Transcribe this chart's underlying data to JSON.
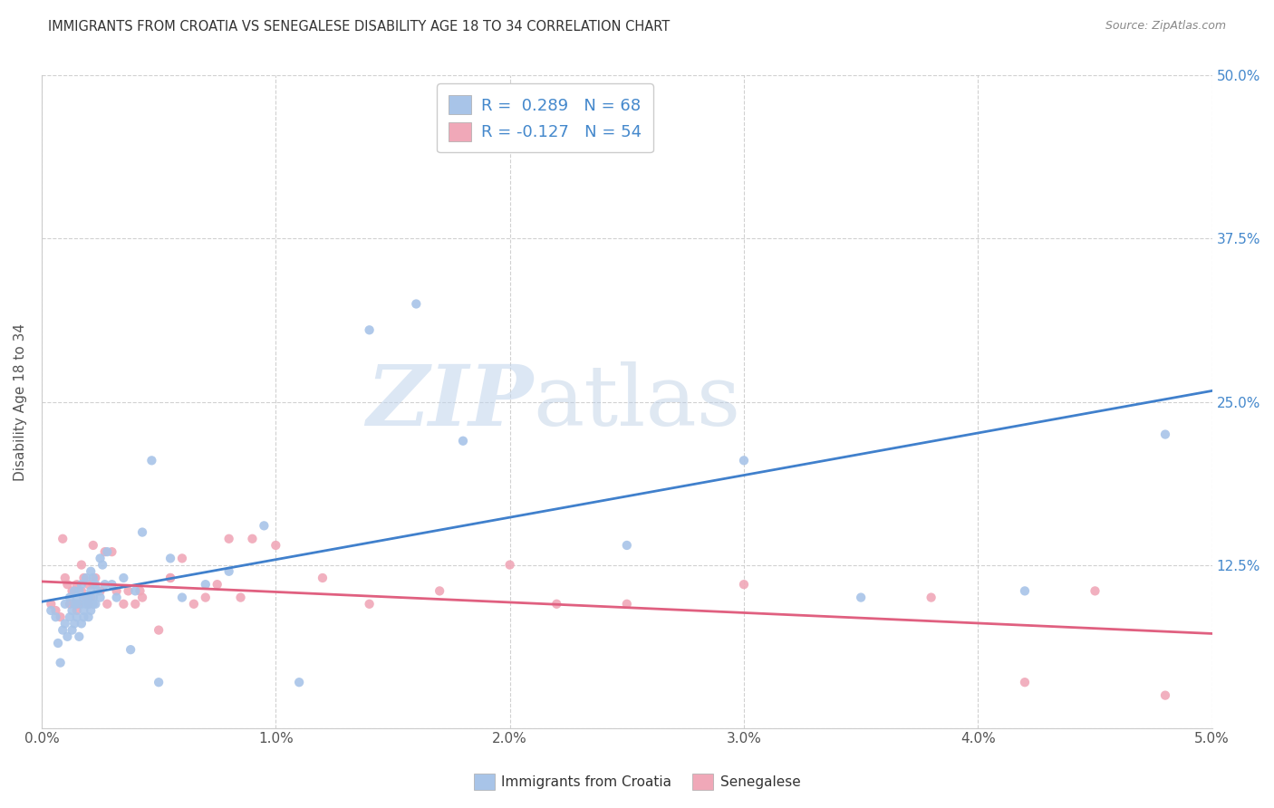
{
  "title": "IMMIGRANTS FROM CROATIA VS SENEGALESE DISABILITY AGE 18 TO 34 CORRELATION CHART",
  "source": "Source: ZipAtlas.com",
  "ylabel_label": "Disability Age 18 to 34",
  "xlim": [
    0.0,
    5.0
  ],
  "ylim": [
    0.0,
    50.0
  ],
  "croatia_R": 0.289,
  "croatia_N": 68,
  "senegal_R": -0.127,
  "senegal_N": 54,
  "croatia_color": "#a8c4e8",
  "senegal_color": "#f0a8b8",
  "croatia_line_color": "#4080cc",
  "senegal_line_color": "#e06080",
  "legend_label_croatia": "Immigrants from Croatia",
  "legend_label_senegal": "Senegalese",
  "watermark_zip": "ZIP",
  "watermark_atlas": "atlas",
  "background_color": "#ffffff",
  "grid_color": "#cccccc",
  "right_tick_color": "#4488cc",
  "croatia_x": [
    0.04,
    0.06,
    0.07,
    0.08,
    0.09,
    0.1,
    0.1,
    0.11,
    0.12,
    0.12,
    0.13,
    0.13,
    0.14,
    0.14,
    0.14,
    0.15,
    0.15,
    0.15,
    0.16,
    0.16,
    0.17,
    0.17,
    0.17,
    0.18,
    0.18,
    0.18,
    0.19,
    0.19,
    0.2,
    0.2,
    0.2,
    0.21,
    0.21,
    0.21,
    0.22,
    0.22,
    0.22,
    0.23,
    0.23,
    0.24,
    0.25,
    0.25,
    0.26,
    0.27,
    0.28,
    0.3,
    0.32,
    0.35,
    0.38,
    0.4,
    0.43,
    0.47,
    0.5,
    0.55,
    0.6,
    0.7,
    0.8,
    0.95,
    1.1,
    1.4,
    1.6,
    1.8,
    2.1,
    2.5,
    3.0,
    3.5,
    4.2,
    4.8
  ],
  "croatia_y": [
    9.0,
    8.5,
    6.5,
    5.0,
    7.5,
    8.0,
    9.5,
    7.0,
    8.5,
    10.0,
    7.5,
    9.0,
    8.0,
    10.5,
    9.5,
    8.5,
    10.0,
    9.5,
    7.0,
    10.5,
    8.0,
    9.5,
    11.0,
    8.5,
    10.0,
    9.0,
    9.5,
    11.5,
    8.5,
    10.0,
    9.5,
    9.0,
    12.0,
    10.5,
    9.5,
    11.5,
    10.0,
    11.0,
    9.5,
    10.5,
    13.0,
    10.0,
    12.5,
    11.0,
    13.5,
    11.0,
    10.0,
    11.5,
    6.0,
    10.5,
    15.0,
    20.5,
    3.5,
    13.0,
    10.0,
    11.0,
    12.0,
    15.5,
    3.5,
    30.5,
    32.5,
    22.0,
    45.0,
    14.0,
    20.5,
    10.0,
    10.5,
    22.5
  ],
  "senegal_x": [
    0.04,
    0.06,
    0.08,
    0.09,
    0.1,
    0.11,
    0.12,
    0.13,
    0.14,
    0.15,
    0.15,
    0.16,
    0.17,
    0.17,
    0.18,
    0.19,
    0.2,
    0.2,
    0.21,
    0.22,
    0.22,
    0.23,
    0.25,
    0.27,
    0.28,
    0.3,
    0.32,
    0.35,
    0.37,
    0.4,
    0.43,
    0.5,
    0.55,
    0.6,
    0.7,
    0.8,
    0.9,
    1.0,
    1.2,
    1.4,
    1.7,
    2.0,
    2.2,
    2.5,
    3.0,
    3.8,
    4.2,
    4.5,
    4.8,
    0.42,
    0.55,
    0.65,
    0.75,
    0.85
  ],
  "senegal_y": [
    9.5,
    9.0,
    8.5,
    14.5,
    11.5,
    11.0,
    9.5,
    10.5,
    9.5,
    9.0,
    11.0,
    9.5,
    10.5,
    12.5,
    11.5,
    10.0,
    9.5,
    11.0,
    10.0,
    11.0,
    14.0,
    11.5,
    10.5,
    13.5,
    9.5,
    13.5,
    10.5,
    9.5,
    10.5,
    9.5,
    10.0,
    7.5,
    11.5,
    13.0,
    10.0,
    14.5,
    14.5,
    14.0,
    11.5,
    9.5,
    10.5,
    12.5,
    9.5,
    9.5,
    11.0,
    10.0,
    3.5,
    10.5,
    2.5,
    10.5,
    11.5,
    9.5,
    11.0,
    10.0
  ]
}
